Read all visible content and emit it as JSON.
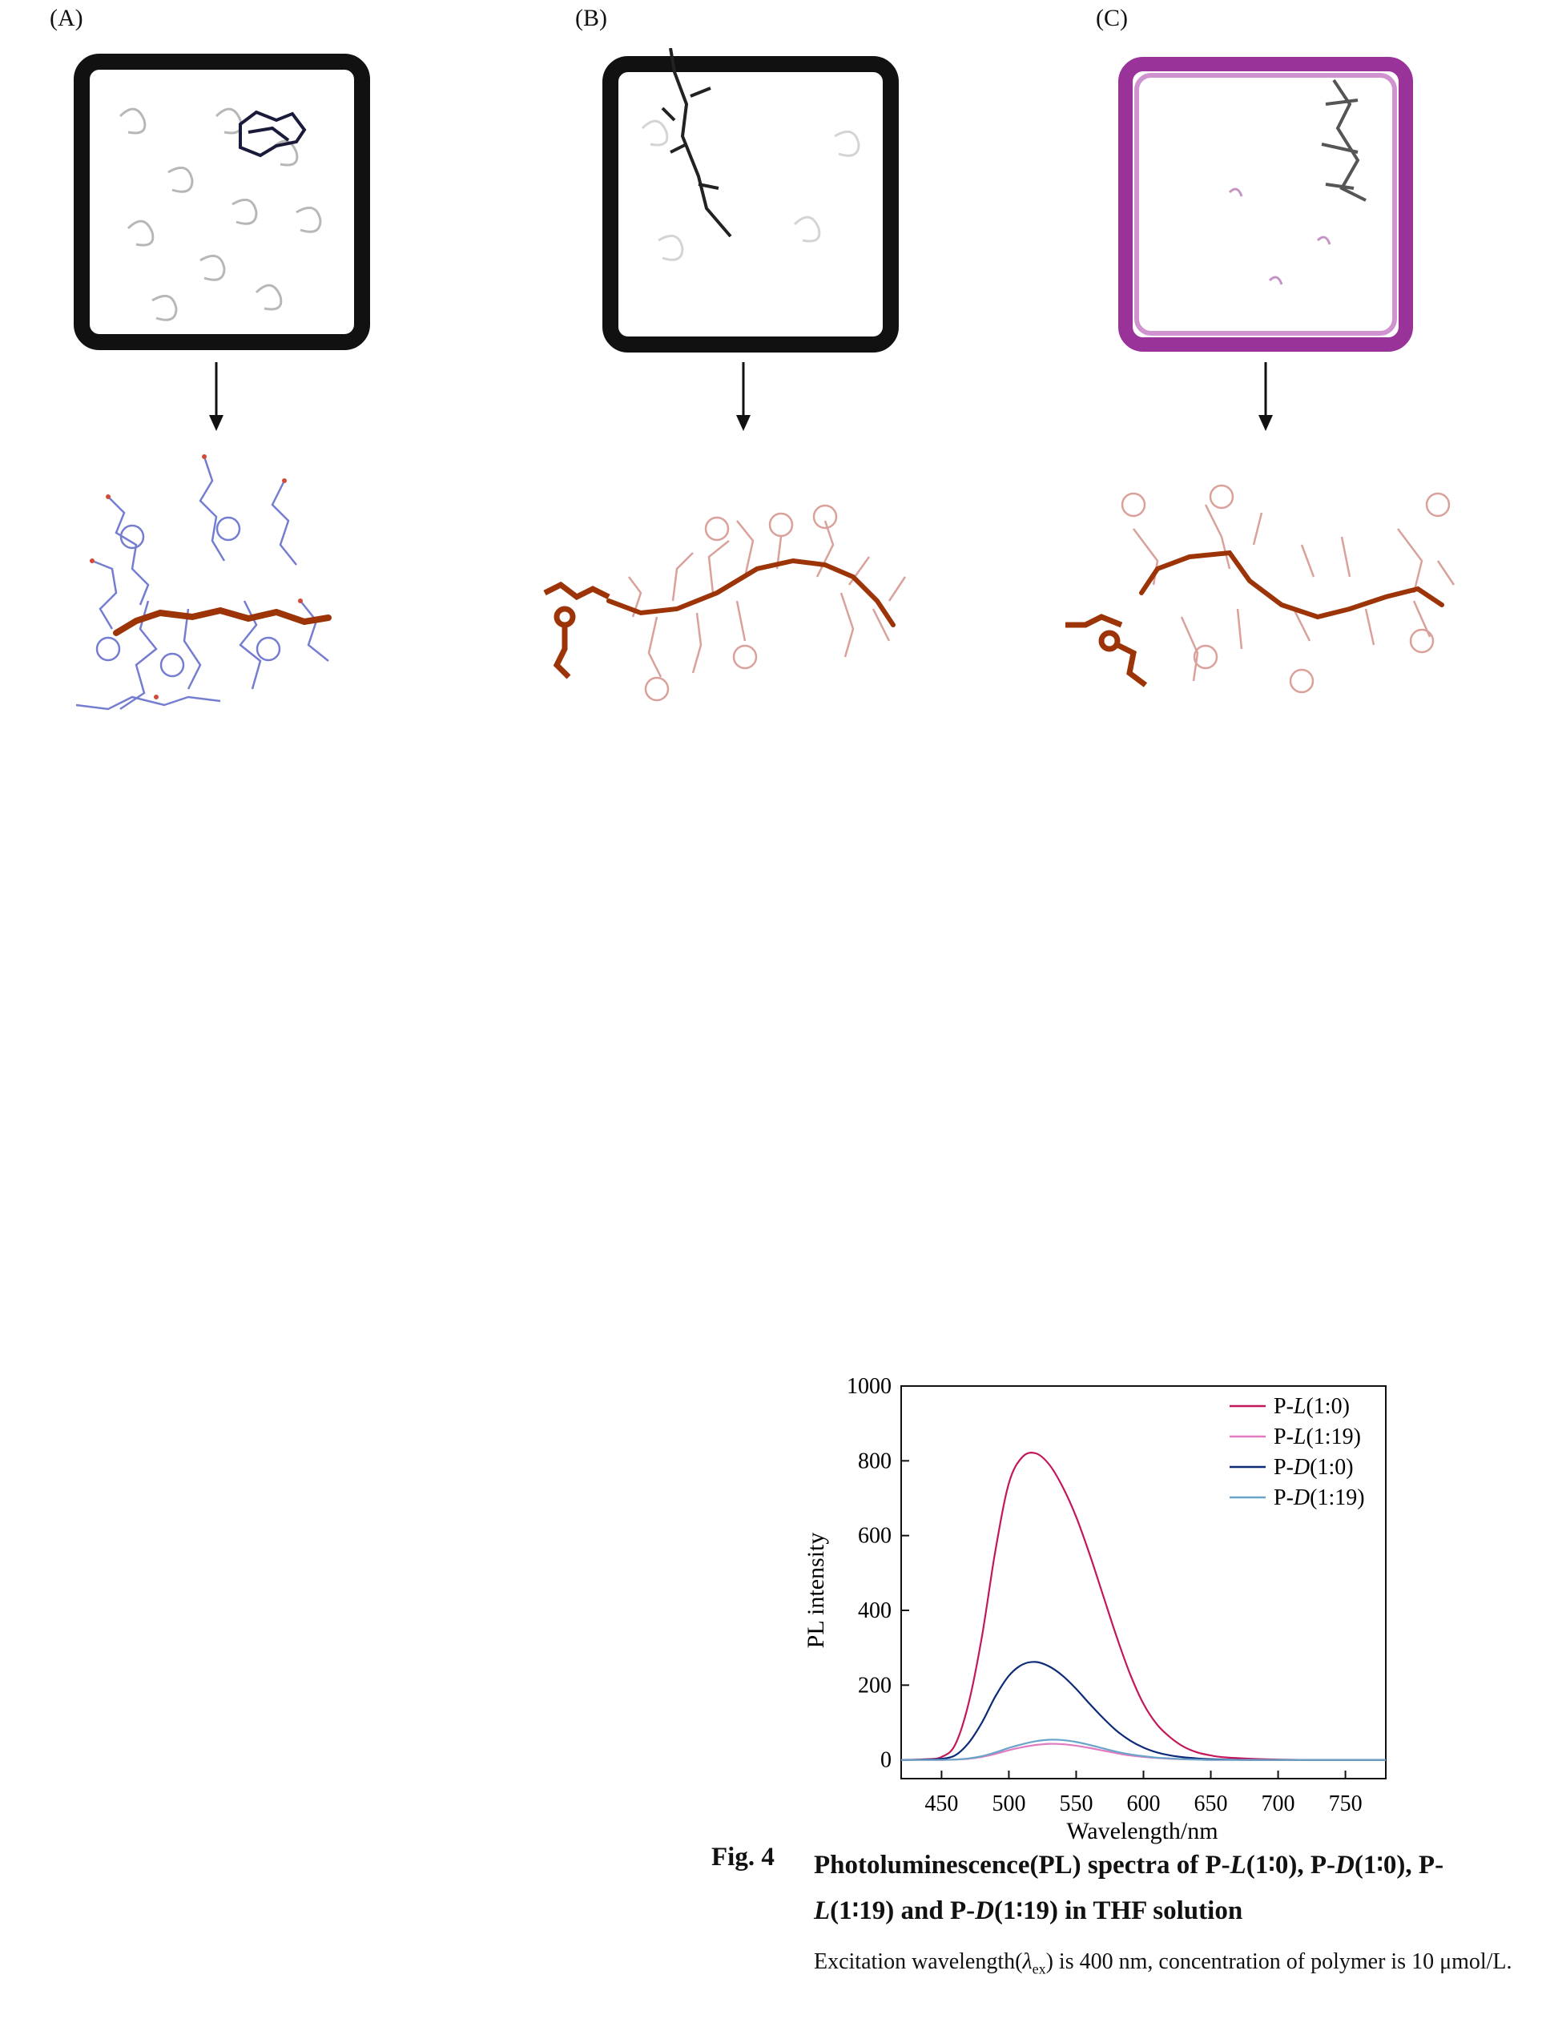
{
  "panels": [
    {
      "label": "(A)",
      "box_color": "#111111",
      "chain_color": "#9c3408",
      "branch_color": "#5d67c9"
    },
    {
      "label": "(B)",
      "box_color": "#111111",
      "chain_color": "#9c3408",
      "branch_color": "#d4918a"
    },
    {
      "label": "(C)",
      "box_color": "#8e1c8e",
      "chain_color": "#9c3408",
      "branch_color": "#d4918a"
    }
  ],
  "chart_data": {
    "type": "line",
    "xlabel": "Wavelength/nm",
    "ylabel": "PL intensity",
    "xlim": [
      420,
      780
    ],
    "ylim": [
      -50,
      1000
    ],
    "xticks": [
      450,
      500,
      550,
      600,
      650,
      700,
      750
    ],
    "yticks": [
      0,
      200,
      400,
      600,
      800,
      1000
    ],
    "legend_position": "top-right",
    "x": [
      420,
      440,
      450,
      460,
      470,
      480,
      490,
      500,
      510,
      520,
      530,
      540,
      550,
      560,
      570,
      580,
      590,
      600,
      610,
      620,
      630,
      640,
      650,
      660,
      680,
      700,
      720,
      750,
      780
    ],
    "series": [
      {
        "name": "P-L(1:0)",
        "legend_prefix": "P-",
        "legend_italic": "L",
        "legend_suffix": "(1:0)",
        "color": "#c2185b",
        "values": [
          0,
          2,
          8,
          40,
          150,
          330,
          560,
          740,
          810,
          820,
          790,
          730,
          650,
          550,
          440,
          330,
          230,
          150,
          95,
          60,
          35,
          20,
          12,
          7,
          3,
          1,
          0,
          0,
          0
        ]
      },
      {
        "name": "P-L(1:19)",
        "legend_prefix": "P-",
        "legend_italic": "L",
        "legend_suffix": "(1:19)",
        "color": "#e27ac2",
        "values": [
          0,
          0,
          0,
          1,
          3,
          8,
          16,
          26,
          34,
          40,
          43,
          42,
          38,
          32,
          25,
          18,
          12,
          8,
          5,
          3,
          2,
          1,
          0,
          0,
          0,
          0,
          0,
          0,
          0
        ]
      },
      {
        "name": "P-D(1:0)",
        "legend_prefix": "P-",
        "legend_italic": "D",
        "legend_suffix": "(1:0)",
        "color": "#0d2a78",
        "values": [
          0,
          1,
          3,
          12,
          45,
          100,
          170,
          225,
          255,
          262,
          250,
          225,
          190,
          150,
          112,
          78,
          52,
          33,
          20,
          12,
          7,
          4,
          2,
          1,
          0,
          0,
          0,
          0,
          0
        ]
      },
      {
        "name": "P-D(1:19)",
        "legend_prefix": "P-",
        "legend_italic": "D",
        "legend_suffix": "(1:19)",
        "color": "#6aa5c9",
        "values": [
          0,
          0,
          0,
          1,
          4,
          10,
          20,
          32,
          42,
          50,
          54,
          53,
          48,
          40,
          31,
          22,
          15,
          10,
          6,
          4,
          2,
          1,
          0,
          0,
          0,
          0,
          0,
          0,
          0
        ]
      }
    ]
  },
  "caption": {
    "fig_label": "Fig. 4",
    "title_1": "Photoluminescence(PL) spectra of P-",
    "title_2": "L",
    "title_3": "(1∶0), P-",
    "title_4": "D",
    "title_5": "(1∶0), P-",
    "title_6": "L",
    "title_7": "(1∶19) and P-",
    "title_8": "D",
    "title_9": "(1∶19) in THF solution",
    "note_1": "Excitation wavelength(",
    "note_lambda": "λ",
    "note_sub": "ex",
    "note_2": ") is 400 nm, concentration of polymer is 10 μmol/L."
  }
}
